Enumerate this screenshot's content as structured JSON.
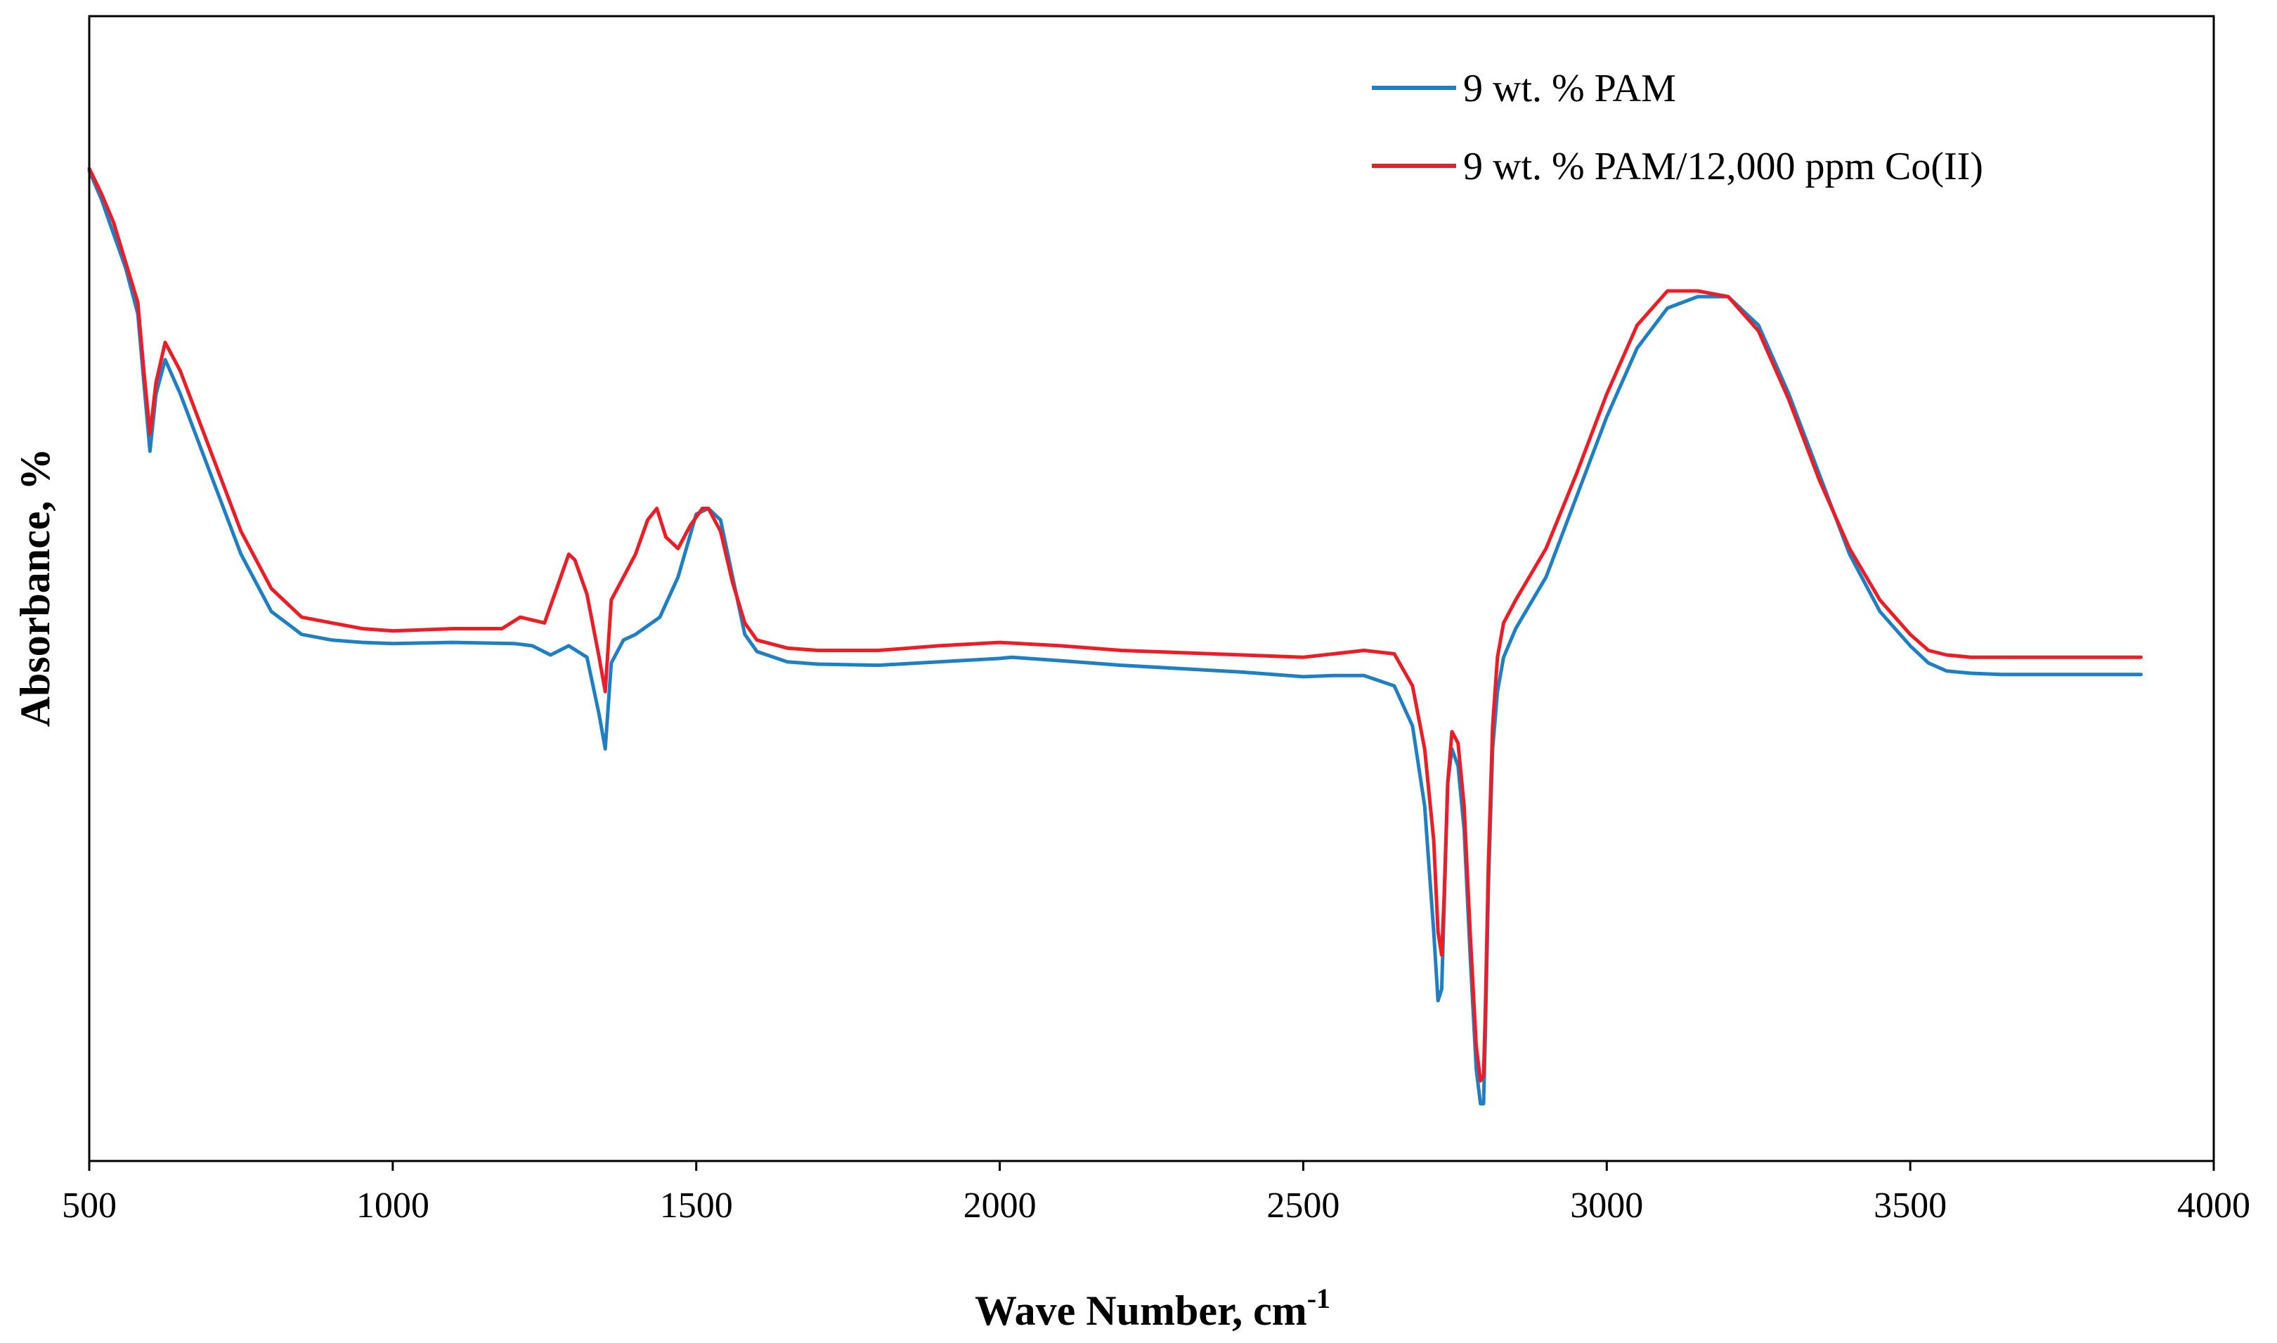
{
  "chart_data": {
    "type": "line",
    "title": "",
    "xlabel": "Wave Number, cm",
    "xlabel_sup": "-1",
    "ylabel": "Absorbance, %",
    "xlim": [
      500,
      4000
    ],
    "ylim": [
      0,
      100
    ],
    "x_ticks": [
      500,
      1000,
      1500,
      2000,
      2500,
      3000,
      3500,
      4000
    ],
    "x_tick_labels": [
      "500",
      "1000",
      "1500",
      "2000",
      "2500",
      "3000",
      "3500",
      "4000"
    ],
    "y_ticks_visible": false,
    "grid": false,
    "legend_position": "top-right",
    "series": [
      {
        "name": "9 wt. % PAM",
        "color": "#1f7fc4",
        "x": [
          500,
          520,
          540,
          560,
          580,
          590,
          600,
          610,
          625,
          650,
          700,
          750,
          800,
          850,
          900,
          950,
          1000,
          1100,
          1200,
          1230,
          1260,
          1290,
          1320,
          1340,
          1350,
          1360,
          1380,
          1400,
          1440,
          1470,
          1500,
          1520,
          1540,
          1560,
          1580,
          1600,
          1650,
          1700,
          1800,
          1900,
          2000,
          2020,
          2100,
          2200,
          2300,
          2400,
          2500,
          2550,
          2600,
          2650,
          2680,
          2700,
          2715,
          2722,
          2728,
          2732,
          2738,
          2745,
          2755,
          2765,
          2775,
          2785,
          2792,
          2797,
          2800,
          2805,
          2812,
          2820,
          2830,
          2850,
          2900,
          2950,
          3000,
          3050,
          3100,
          3150,
          3200,
          3250,
          3300,
          3350,
          3400,
          3450,
          3500,
          3530,
          3560,
          3600,
          3650,
          3700,
          3800,
          3880
        ],
        "y": [
          86.5,
          84.0,
          81.0,
          78.0,
          74.0,
          68.0,
          62.0,
          67.0,
          70.0,
          67.0,
          60.0,
          53.0,
          48.0,
          46.0,
          45.5,
          45.3,
          45.2,
          45.3,
          45.2,
          45.0,
          44.2,
          45.0,
          44.0,
          39.0,
          36.0,
          43.5,
          45.5,
          46.0,
          47.5,
          51.0,
          56.5,
          57.0,
          56.0,
          51.0,
          46.0,
          44.5,
          43.6,
          43.4,
          43.3,
          43.6,
          43.9,
          44.0,
          43.7,
          43.3,
          43.0,
          42.7,
          42.3,
          42.4,
          42.4,
          41.5,
          38.0,
          31.0,
          20.0,
          14.0,
          15.0,
          22.0,
          33.0,
          36.0,
          34.5,
          29.0,
          18.0,
          8.0,
          5.0,
          5.0,
          11.0,
          24.0,
          36.0,
          41.0,
          44.0,
          46.5,
          51.0,
          58.0,
          65.0,
          71.0,
          74.5,
          75.5,
          75.5,
          73.0,
          67.0,
          60.0,
          53.0,
          48.0,
          45.0,
          43.5,
          42.8,
          42.6,
          42.5,
          42.5,
          42.5,
          42.5
        ]
      },
      {
        "name": "9 wt. % PAM/12,000 ppm Co(II)",
        "color": "#ee1c24",
        "x": [
          500,
          520,
          540,
          560,
          580,
          590,
          600,
          610,
          625,
          650,
          700,
          750,
          800,
          850,
          900,
          950,
          1000,
          1100,
          1180,
          1210,
          1250,
          1270,
          1290,
          1300,
          1320,
          1340,
          1350,
          1360,
          1380,
          1400,
          1420,
          1435,
          1450,
          1470,
          1490,
          1510,
          1520,
          1540,
          1560,
          1580,
          1600,
          1650,
          1700,
          1800,
          1900,
          2000,
          2100,
          2200,
          2300,
          2400,
          2500,
          2550,
          2600,
          2650,
          2680,
          2700,
          2715,
          2722,
          2728,
          2732,
          2738,
          2745,
          2755,
          2765,
          2775,
          2785,
          2792,
          2797,
          2800,
          2805,
          2812,
          2820,
          2830,
          2850,
          2900,
          2950,
          3000,
          3050,
          3100,
          3150,
          3200,
          3250,
          3300,
          3350,
          3400,
          3450,
          3500,
          3530,
          3560,
          3600,
          3650,
          3700,
          3800,
          3880
        ],
        "y": [
          86.7,
          84.5,
          82.0,
          78.5,
          75.0,
          69.0,
          63.5,
          68.0,
          71.5,
          69.0,
          62.0,
          55.0,
          50.0,
          47.5,
          47.0,
          46.5,
          46.3,
          46.5,
          46.5,
          47.5,
          47.0,
          50.0,
          53.0,
          52.5,
          49.5,
          44.0,
          41.0,
          49.0,
          51.0,
          53.0,
          56.0,
          57.0,
          54.5,
          53.5,
          55.5,
          57.0,
          57.0,
          55.0,
          50.5,
          47.0,
          45.5,
          44.8,
          44.6,
          44.6,
          45.0,
          45.3,
          45.0,
          44.6,
          44.4,
          44.2,
          44.0,
          44.3,
          44.6,
          44.3,
          41.5,
          36.0,
          28.0,
          20.0,
          18.0,
          23.0,
          33.0,
          37.5,
          36.5,
          31.0,
          20.0,
          10.0,
          7.0,
          7.5,
          13.0,
          26.0,
          38.0,
          44.0,
          47.0,
          49.0,
          53.5,
          60.0,
          67.0,
          73.0,
          76.0,
          76.0,
          75.5,
          72.5,
          66.5,
          59.5,
          53.5,
          49.0,
          46.0,
          44.6,
          44.2,
          44.0,
          44.0,
          44.0,
          44.0,
          44.0
        ]
      }
    ]
  }
}
